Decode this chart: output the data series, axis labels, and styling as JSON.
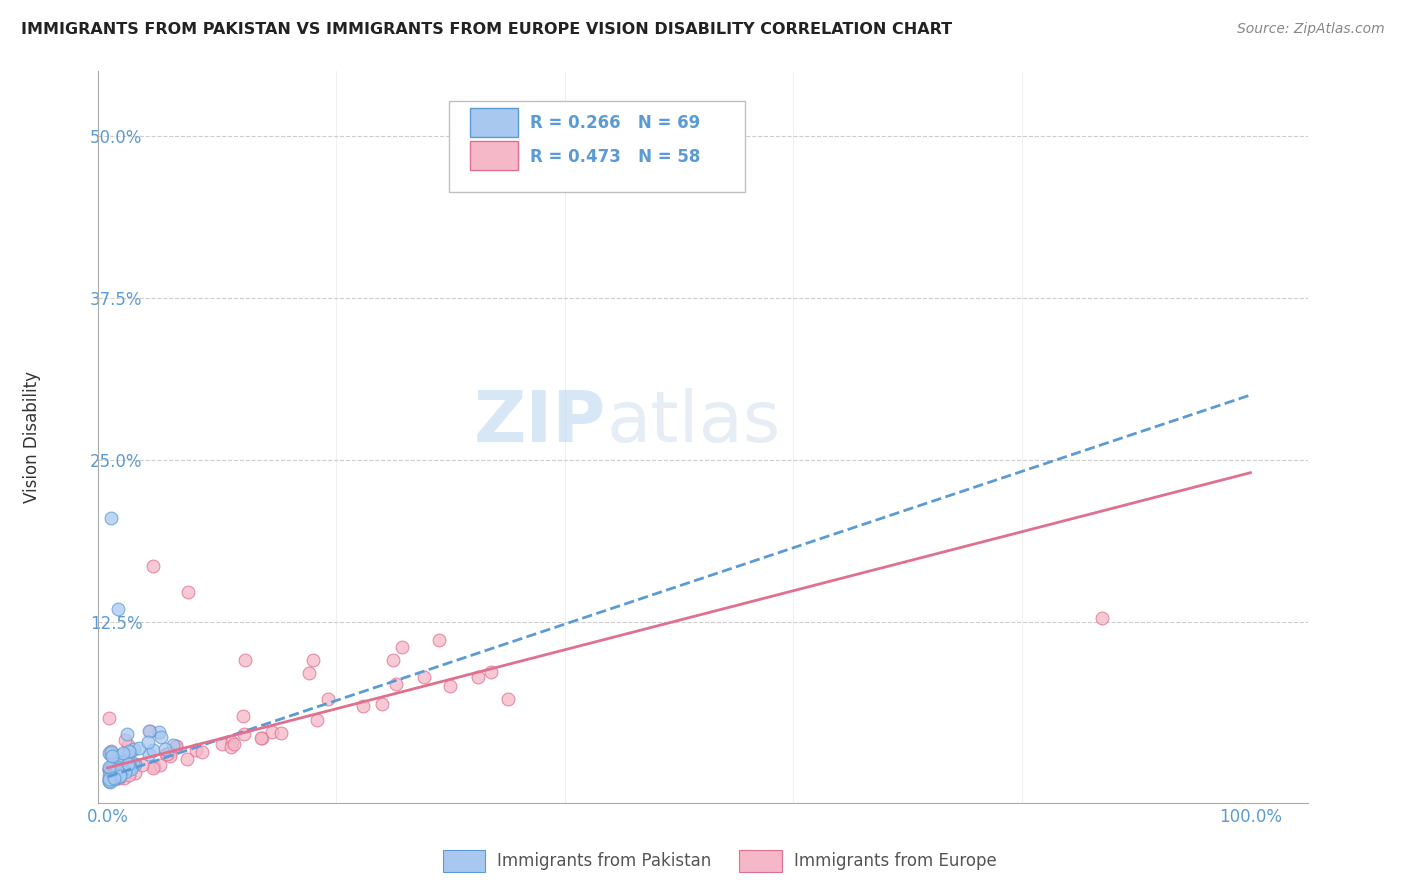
{
  "title": "IMMIGRANTS FROM PAKISTAN VS IMMIGRANTS FROM EUROPE VISION DISABILITY CORRELATION CHART",
  "source": "Source: ZipAtlas.com",
  "ylabel": "Vision Disability",
  "legend1_r": "R = 0.266",
  "legend1_n": "N = 69",
  "legend2_r": "R = 0.473",
  "legend2_n": "N = 58",
  "color_pakistan_fill": "#a8c8f0",
  "color_pakistan_edge": "#5b9bd5",
  "color_europe_fill": "#f4b8c8",
  "color_europe_edge": "#e07090",
  "color_line_pakistan": "#5b9bd5",
  "color_line_europe": "#e07090",
  "color_text_blue": "#5b9bd5",
  "background_color": "#ffffff",
  "watermark_zip": "ZIP",
  "watermark_atlas": "atlas",
  "grid_color": "#c8c8c8",
  "xlim_min": -0.008,
  "xlim_max": 1.05,
  "ylim_min": -0.015,
  "ylim_max": 0.55,
  "yticks": [
    0.0,
    0.125,
    0.25,
    0.375,
    0.5
  ],
  "ytick_labels": [
    "",
    "12.5%",
    "25.0%",
    "37.5%",
    "50.0%"
  ],
  "xticks": [
    0.0,
    1.0
  ],
  "xtick_labels": [
    "0.0%",
    "100.0%"
  ],
  "pak_line_start_x": 0.0,
  "pak_line_start_y": 0.005,
  "pak_line_end_x": 1.0,
  "pak_line_end_y": 0.3,
  "eur_line_start_x": 0.0,
  "eur_line_start_y": 0.012,
  "eur_line_end_x": 1.0,
  "eur_line_end_y": 0.24
}
